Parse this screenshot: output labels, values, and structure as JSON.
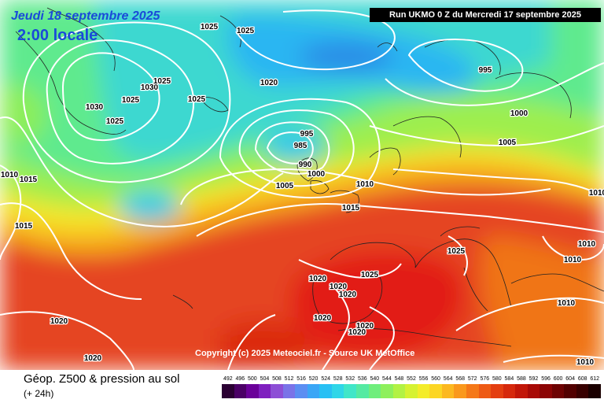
{
  "header": {
    "date": "Jeudi 18 septembre 2025",
    "time": "2:00 locale",
    "run": "Run UKMO 0 Z du Mercredi 17 septembre 2025"
  },
  "copyright": "Copyright (c) 2025 Meteociel.fr - Source UK MetOffice",
  "footer": {
    "title": "Géop. Z500 & pression au sol",
    "subtitle": "(+ 24h)"
  },
  "legend": {
    "values": [
      "492",
      "496",
      "500",
      "504",
      "508",
      "512",
      "516",
      "520",
      "524",
      "528",
      "532",
      "536",
      "540",
      "544",
      "548",
      "552",
      "556",
      "560",
      "564",
      "568",
      "572",
      "576",
      "580",
      "584",
      "588",
      "592",
      "596",
      "600",
      "604",
      "608",
      "612"
    ],
    "colors": [
      "#2b0033",
      "#4b0066",
      "#6a0099",
      "#7f1fbf",
      "#8d4fd6",
      "#7a73e8",
      "#5b8ef2",
      "#3aa6f6",
      "#28c0f4",
      "#2fd6e8",
      "#40e6c8",
      "#55eaa2",
      "#6fee7c",
      "#8ef05c",
      "#b2f244",
      "#d6f232",
      "#f4ec2a",
      "#fcd624",
      "#fcb820",
      "#fa981c",
      "#f57818",
      "#ee5a14",
      "#e43e10",
      "#d6280c",
      "#c21608",
      "#a80a06",
      "#8c0404",
      "#6e0202",
      "#520000",
      "#380000",
      "#1a0000"
    ]
  },
  "isobars": [
    {
      "value": "1025",
      "color": "#ffffff"
    },
    {
      "value": "1025",
      "color": "#ffffff"
    },
    {
      "value": "1020",
      "color": "#ffffff"
    },
    {
      "value": "1030",
      "color": "#ffffff"
    },
    {
      "value": "1030",
      "color": "#ffffff"
    },
    {
      "value": "1025",
      "color": "#ffffff"
    },
    {
      "value": "1025",
      "color": "#ffffff"
    },
    {
      "value": "1025",
      "color": "#ffffff"
    },
    {
      "value": "1025",
      "color": "#ffffff"
    },
    {
      "value": "995",
      "color": "#ffffff"
    },
    {
      "value": "985",
      "color": "#ffffff"
    },
    {
      "value": "990",
      "color": "#ffffff"
    },
    {
      "value": "1000",
      "color": "#ffffff"
    },
    {
      "value": "1005",
      "color": "#ffffff"
    },
    {
      "value": "1010",
      "color": "#ffffff"
    },
    {
      "value": "1015",
      "color": "#ffffff"
    },
    {
      "value": "995",
      "color": "#ffffff"
    },
    {
      "value": "1000",
      "color": "#ffffff"
    },
    {
      "value": "1005",
      "color": "#ffffff"
    },
    {
      "value": "1010",
      "color": "#ffffff"
    },
    {
      "value": "1015",
      "color": "#ffffff"
    },
    {
      "value": "1015",
      "color": "#ffffff"
    },
    {
      "value": "1025",
      "color": "#ffffff"
    },
    {
      "value": "1020",
      "color": "#ffffff"
    },
    {
      "value": "1020",
      "color": "#ffffff"
    },
    {
      "value": "1020",
      "color": "#ffffff"
    },
    {
      "value": "1025",
      "color": "#ffffff"
    },
    {
      "value": "1020",
      "color": "#ffffff"
    },
    {
      "value": "1020",
      "color": "#ffffff"
    },
    {
      "value": "1020",
      "color": "#ffffff"
    },
    {
      "value": "1020",
      "color": "#ffffff"
    },
    {
      "value": "1020",
      "color": "#ffffff"
    },
    {
      "value": "1010",
      "color": "#ffffff"
    },
    {
      "value": "1010",
      "color": "#ffffff"
    },
    {
      "value": "1010",
      "color": "#ffffff"
    },
    {
      "value": "1010",
      "color": "#ffffff"
    },
    {
      "value": "1010",
      "color": "#ffffff"
    }
  ]
}
